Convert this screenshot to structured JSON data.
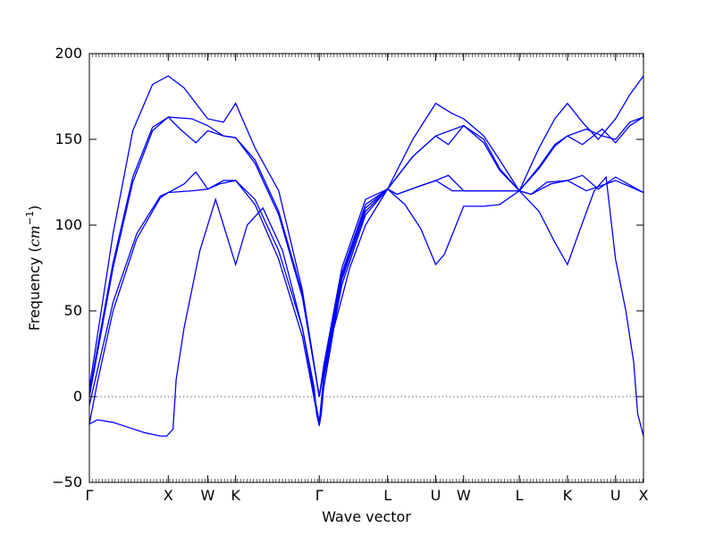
{
  "chart_data": {
    "type": "line",
    "title": "",
    "xlabel": "Wave vector",
    "ylabel": "Frequency",
    "ylabel_unit": "cm",
    "ylabel_unit_exp": "−1",
    "ylim": [
      -50,
      200
    ],
    "yticks": [
      -50,
      0,
      50,
      100,
      150,
      200
    ],
    "yticks_labels": [
      "−50",
      "0",
      "50",
      "100",
      "150",
      "200"
    ],
    "x_high_symmetry": [
      {
        "label": "Γ",
        "x": 0.0
      },
      {
        "label": "X",
        "x": 1.0
      },
      {
        "label": "W",
        "x": 1.5
      },
      {
        "label": "K",
        "x": 1.854
      },
      {
        "label": "Γ",
        "x": 2.914
      },
      {
        "label": "L",
        "x": 3.78
      },
      {
        "label": "U",
        "x": 4.39
      },
      {
        "label": "W",
        "x": 4.744
      },
      {
        "label": "L",
        "x": 5.45
      },
      {
        "label": "K",
        "x": 6.06
      },
      {
        "label": "U",
        "x": 6.67
      },
      {
        "label": "X",
        "x": 7.024
      }
    ],
    "xlim": [
      0,
      7.024
    ],
    "zero_line": true,
    "series_color": "#0000ff",
    "series": [
      {
        "values": [
          [
            0,
            -16
          ],
          [
            0.1,
            -13.5
          ],
          [
            0.3,
            -15
          ],
          [
            0.5,
            -18
          ],
          [
            0.7,
            -21
          ],
          [
            0.9,
            -23
          ],
          [
            0.98,
            -23
          ],
          [
            1.06,
            -19
          ],
          [
            1.1,
            10
          ],
          [
            1.2,
            40
          ],
          [
            1.4,
            85
          ],
          [
            1.6,
            115
          ],
          [
            1.854,
            77
          ],
          [
            2.0,
            100
          ],
          [
            2.2,
            110
          ],
          [
            2.45,
            85
          ],
          [
            2.7,
            40
          ],
          [
            2.85,
            5
          ],
          [
            2.88,
            -10
          ],
          [
            2.914,
            -17
          ],
          [
            2.94,
            -10
          ],
          [
            2.97,
            5
          ],
          [
            3.1,
            40
          ],
          [
            3.3,
            75
          ],
          [
            3.5,
            100
          ],
          [
            3.78,
            121
          ],
          [
            4.0,
            112
          ],
          [
            4.2,
            98
          ],
          [
            4.39,
            77
          ],
          [
            4.5,
            83
          ],
          [
            4.744,
            111
          ],
          [
            5.0,
            111
          ],
          [
            5.2,
            112
          ],
          [
            5.45,
            120
          ],
          [
            5.7,
            108
          ],
          [
            5.9,
            90
          ],
          [
            6.06,
            77
          ],
          [
            6.2,
            95
          ],
          [
            6.4,
            120
          ],
          [
            6.55,
            128
          ],
          [
            6.67,
            80
          ],
          [
            6.8,
            50
          ],
          [
            6.9,
            20
          ],
          [
            6.95,
            -10
          ],
          [
            7.024,
            -23
          ]
        ]
      },
      {
        "values": [
          [
            0,
            -16
          ],
          [
            0.1,
            8
          ],
          [
            0.3,
            50
          ],
          [
            0.6,
            92
          ],
          [
            0.9,
            116
          ],
          [
            1.0,
            119
          ],
          [
            1.2,
            124
          ],
          [
            1.35,
            131
          ],
          [
            1.5,
            121
          ],
          [
            1.7,
            126
          ],
          [
            1.854,
            126
          ],
          [
            2.1,
            112
          ],
          [
            2.4,
            80
          ],
          [
            2.7,
            35
          ],
          [
            2.914,
            -17
          ],
          [
            2.97,
            10
          ],
          [
            3.2,
            65
          ],
          [
            3.5,
            106
          ],
          [
            3.78,
            121
          ],
          [
            3.9,
            118
          ],
          [
            4.2,
            123
          ],
          [
            4.39,
            126
          ],
          [
            4.6,
            120
          ],
          [
            4.744,
            120
          ],
          [
            5.1,
            120
          ],
          [
            5.45,
            120
          ],
          [
            5.6,
            118
          ],
          [
            5.85,
            124
          ],
          [
            6.06,
            126
          ],
          [
            6.3,
            120
          ],
          [
            6.67,
            126
          ],
          [
            7.024,
            119
          ]
        ]
      },
      {
        "values": [
          [
            0,
            -5
          ],
          [
            0.1,
            15
          ],
          [
            0.3,
            55
          ],
          [
            0.6,
            95
          ],
          [
            0.9,
            117
          ],
          [
            1.0,
            119
          ],
          [
            1.3,
            120
          ],
          [
            1.5,
            121
          ],
          [
            1.65,
            124
          ],
          [
            1.854,
            126
          ],
          [
            2.1,
            115
          ],
          [
            2.4,
            85
          ],
          [
            2.7,
            40
          ],
          [
            2.914,
            -15
          ],
          [
            2.97,
            12
          ],
          [
            3.2,
            68
          ],
          [
            3.5,
            108
          ],
          [
            3.78,
            121
          ],
          [
            3.9,
            118
          ],
          [
            4.2,
            123
          ],
          [
            4.39,
            126
          ],
          [
            4.55,
            129
          ],
          [
            4.744,
            120
          ],
          [
            5.1,
            120
          ],
          [
            5.45,
            120
          ],
          [
            5.6,
            118
          ],
          [
            5.8,
            125
          ],
          [
            6.06,
            126
          ],
          [
            6.25,
            129
          ],
          [
            6.45,
            121
          ],
          [
            6.67,
            128
          ],
          [
            7.024,
            119
          ]
        ]
      },
      {
        "values": [
          [
            0,
            0
          ],
          [
            0.1,
            25
          ],
          [
            0.3,
            75
          ],
          [
            0.55,
            125
          ],
          [
            0.8,
            155
          ],
          [
            1.0,
            163
          ],
          [
            1.3,
            162
          ],
          [
            1.5,
            158
          ],
          [
            1.7,
            152
          ],
          [
            1.854,
            151
          ],
          [
            2.1,
            138
          ],
          [
            2.4,
            108
          ],
          [
            2.7,
            60
          ],
          [
            2.914,
            0
          ],
          [
            2.97,
            15
          ],
          [
            3.2,
            70
          ],
          [
            3.5,
            110
          ],
          [
            3.78,
            121
          ],
          [
            4.1,
            140
          ],
          [
            4.39,
            152
          ],
          [
            4.744,
            158
          ],
          [
            5.0,
            148
          ],
          [
            5.2,
            132
          ],
          [
            5.45,
            120
          ],
          [
            5.7,
            133
          ],
          [
            5.9,
            146
          ],
          [
            6.06,
            152
          ],
          [
            6.3,
            156
          ],
          [
            6.5,
            152
          ],
          [
            6.67,
            150
          ],
          [
            6.85,
            160
          ],
          [
            7.024,
            163
          ]
        ]
      },
      {
        "values": [
          [
            0,
            2
          ],
          [
            0.1,
            28
          ],
          [
            0.3,
            78
          ],
          [
            0.55,
            128
          ],
          [
            0.8,
            157
          ],
          [
            1.0,
            163
          ],
          [
            1.15,
            156
          ],
          [
            1.35,
            148
          ],
          [
            1.5,
            155
          ],
          [
            1.7,
            152
          ],
          [
            1.854,
            151
          ],
          [
            2.1,
            136
          ],
          [
            2.4,
            106
          ],
          [
            2.7,
            58
          ],
          [
            2.914,
            0
          ],
          [
            2.97,
            16
          ],
          [
            3.2,
            72
          ],
          [
            3.5,
            112
          ],
          [
            3.78,
            121
          ],
          [
            4.1,
            140
          ],
          [
            4.39,
            152
          ],
          [
            4.55,
            147
          ],
          [
            4.744,
            158
          ],
          [
            5.0,
            150
          ],
          [
            5.2,
            133
          ],
          [
            5.45,
            120
          ],
          [
            5.7,
            134
          ],
          [
            5.9,
            147
          ],
          [
            6.06,
            152
          ],
          [
            6.25,
            147
          ],
          [
            6.5,
            156
          ],
          [
            6.67,
            148
          ],
          [
            6.85,
            158
          ],
          [
            7.024,
            163
          ]
        ]
      },
      {
        "values": [
          [
            0,
            5
          ],
          [
            0.1,
            35
          ],
          [
            0.3,
            95
          ],
          [
            0.55,
            155
          ],
          [
            0.8,
            182
          ],
          [
            1.0,
            187
          ],
          [
            1.2,
            180
          ],
          [
            1.5,
            162
          ],
          [
            1.7,
            160
          ],
          [
            1.854,
            171
          ],
          [
            2.1,
            145
          ],
          [
            2.4,
            120
          ],
          [
            2.7,
            62
          ],
          [
            2.914,
            0
          ],
          [
            2.97,
            18
          ],
          [
            3.2,
            75
          ],
          [
            3.5,
            115
          ],
          [
            3.78,
            121
          ],
          [
            4.1,
            150
          ],
          [
            4.39,
            171
          ],
          [
            4.6,
            165
          ],
          [
            4.744,
            162
          ],
          [
            5.0,
            152
          ],
          [
            5.2,
            138
          ],
          [
            5.45,
            120
          ],
          [
            5.7,
            145
          ],
          [
            5.9,
            162
          ],
          [
            6.06,
            171
          ],
          [
            6.25,
            160
          ],
          [
            6.45,
            150
          ],
          [
            6.67,
            162
          ],
          [
            6.85,
            176
          ],
          [
            7.024,
            187
          ]
        ]
      }
    ]
  }
}
